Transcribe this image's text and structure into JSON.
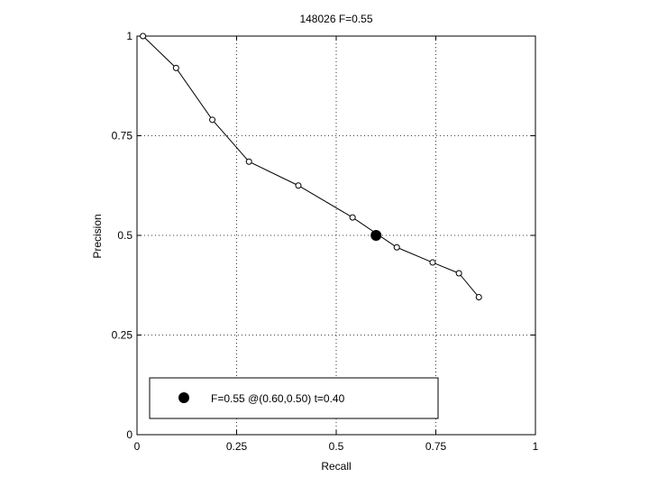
{
  "chart_data": {
    "type": "line",
    "title": "148026 F=0.55",
    "xlabel": "Recall",
    "ylabel": "Precision",
    "xlim": [
      0,
      1
    ],
    "ylim": [
      0,
      1
    ],
    "grid": true,
    "xticks": [
      {
        "value": 0,
        "label": "0"
      },
      {
        "value": 0.25,
        "label": "0.25"
      },
      {
        "value": 0.5,
        "label": "0.5"
      },
      {
        "value": 0.75,
        "label": "0.75"
      },
      {
        "value": 1,
        "label": "1"
      }
    ],
    "yticks": [
      {
        "value": 0,
        "label": "0"
      },
      {
        "value": 0.25,
        "label": "0.25"
      },
      {
        "value": 0.5,
        "label": "0.5"
      },
      {
        "value": 0.75,
        "label": "0.75"
      },
      {
        "value": 1,
        "label": "1"
      }
    ],
    "series": [
      {
        "x": [
          0.015,
          0.098,
          0.189,
          0.281,
          0.405,
          0.541,
          0.652,
          0.742,
          0.808,
          0.858
        ],
        "y": [
          1.0,
          0.92,
          0.79,
          0.685,
          0.625,
          0.545,
          0.47,
          0.432,
          0.405,
          0.345
        ],
        "color": "#000000",
        "marker": "open-circle"
      }
    ],
    "highlight_point": {
      "x": 0.6,
      "y": 0.5,
      "marker": "filled-circle"
    },
    "legend": {
      "position": "bottom",
      "entries": [
        {
          "label": "F=0.55 @(0.60,0.50) t=0.40",
          "marker": "filled-circle"
        }
      ]
    }
  }
}
